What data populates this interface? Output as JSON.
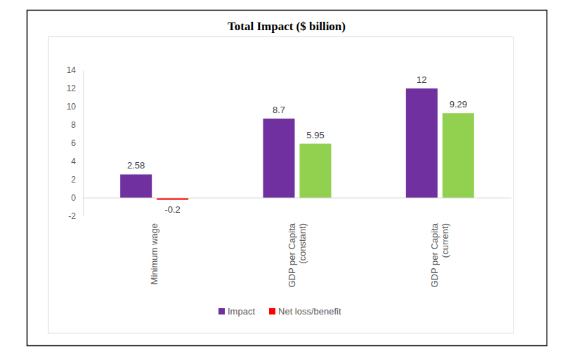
{
  "chart_data": {
    "type": "bar",
    "title": "Total Impact ($ billion)",
    "categories": [
      "Minimum wage",
      "GDP per Capita (constant)",
      "GDP per Capita (current)"
    ],
    "series": [
      {
        "name": "Impact",
        "color": "#7030a0",
        "values": [
          2.58,
          8.7,
          12
        ]
      },
      {
        "name": "Net loss/benefit",
        "color": "#ff0000",
        "colors": [
          "#ff0000",
          "#92d050",
          "#92d050"
        ],
        "values": [
          -0.2,
          5.95,
          9.29
        ]
      }
    ],
    "ylim": [
      -2,
      14
    ],
    "yticks": [
      -2,
      0,
      2,
      4,
      6,
      8,
      10,
      12,
      14
    ],
    "grid": false,
    "data_labels": true,
    "legend": "bottom"
  }
}
